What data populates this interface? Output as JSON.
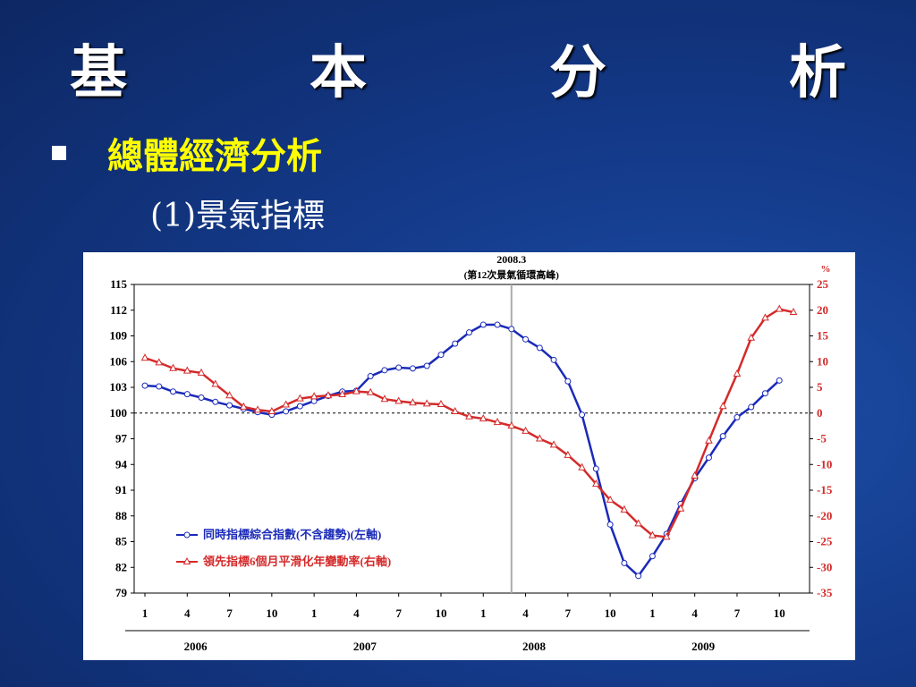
{
  "slide": {
    "title": "基　本　分　析",
    "bullet": "總體經濟分析",
    "subtitle": "(1)景氣指標"
  },
  "chart_data": {
    "type": "line",
    "annotation_title": "2008.3",
    "annotation_sub": "(第12次景氣循環高峰)",
    "right_unit": "%",
    "left_axis": {
      "ylim": [
        79,
        115
      ],
      "ticks": [
        115,
        112,
        109,
        106,
        103,
        100,
        97,
        94,
        91,
        88,
        85,
        82,
        79
      ]
    },
    "right_axis": {
      "ylim": [
        -35,
        25
      ],
      "ticks": [
        25,
        20,
        15,
        10,
        5,
        0,
        -5,
        -10,
        -15,
        -20,
        -25,
        -30,
        -35
      ]
    },
    "x_tick_labels": [
      "1",
      "4",
      "7",
      "10",
      "1",
      "4",
      "7",
      "10",
      "1",
      "4",
      "7",
      "10",
      "1",
      "4",
      "7",
      "10"
    ],
    "year_labels": [
      "2006",
      "2007",
      "2008",
      "2009"
    ],
    "reference_line_month": 27,
    "colors": {
      "series1": "#1a2ab8",
      "series2": "#d42a2a",
      "refline": "#aaaaaa"
    },
    "series": [
      {
        "name": "同時指標綜合指數(不含趨勢)(左軸)",
        "axis": "left",
        "x": [
          1,
          2,
          3,
          4,
          5,
          6,
          7,
          8,
          9,
          10,
          11,
          12,
          13,
          14,
          15,
          16,
          17,
          18,
          19,
          20,
          21,
          22,
          23,
          24,
          25,
          26,
          27,
          28,
          29,
          30,
          31,
          32,
          33,
          34,
          35,
          36,
          37,
          38,
          39,
          40,
          41,
          42,
          43,
          44,
          45,
          46
        ],
        "values": [
          103.2,
          103.1,
          102.5,
          102.2,
          101.8,
          101.3,
          100.9,
          100.5,
          100.1,
          99.8,
          100.2,
          100.8,
          101.4,
          102.0,
          102.5,
          102.6,
          104.3,
          105.0,
          105.3,
          105.2,
          105.5,
          106.8,
          108.1,
          109.4,
          110.3,
          110.3,
          109.8,
          108.6,
          107.6,
          106.2,
          103.7,
          99.8,
          93.5,
          87.0,
          82.5,
          81.0,
          83.3,
          85.9,
          89.4,
          92.4,
          94.8,
          97.3,
          99.5,
          100.7,
          102.3,
          103.8
        ]
      },
      {
        "name": "領先指標6個月平滑化年變動率(右軸)",
        "axis": "right",
        "x": [
          1,
          2,
          3,
          4,
          5,
          6,
          7,
          8,
          9,
          10,
          11,
          12,
          13,
          14,
          15,
          16,
          17,
          18,
          19,
          20,
          21,
          22,
          23,
          24,
          25,
          26,
          27,
          28,
          29,
          30,
          31,
          32,
          33,
          34,
          35,
          36,
          37,
          38,
          39,
          40,
          41,
          42,
          43,
          44,
          45,
          46,
          47
        ],
        "values": [
          10.7,
          9.8,
          8.7,
          8.2,
          7.8,
          5.6,
          3.4,
          1.2,
          0.6,
          0.3,
          1.6,
          2.8,
          3.2,
          3.4,
          3.6,
          4.2,
          4.0,
          2.7,
          2.3,
          2.0,
          1.8,
          1.7,
          0.3,
          -0.7,
          -1.1,
          -1.8,
          -2.5,
          -3.5,
          -5.0,
          -6.2,
          -8.2,
          -10.6,
          -13.8,
          -16.9,
          -18.8,
          -21.5,
          -23.8,
          -24.1,
          -18.6,
          -12.2,
          -5.4,
          1.3,
          7.6,
          14.6,
          18.5,
          20.2,
          19.6
        ]
      }
    ]
  }
}
